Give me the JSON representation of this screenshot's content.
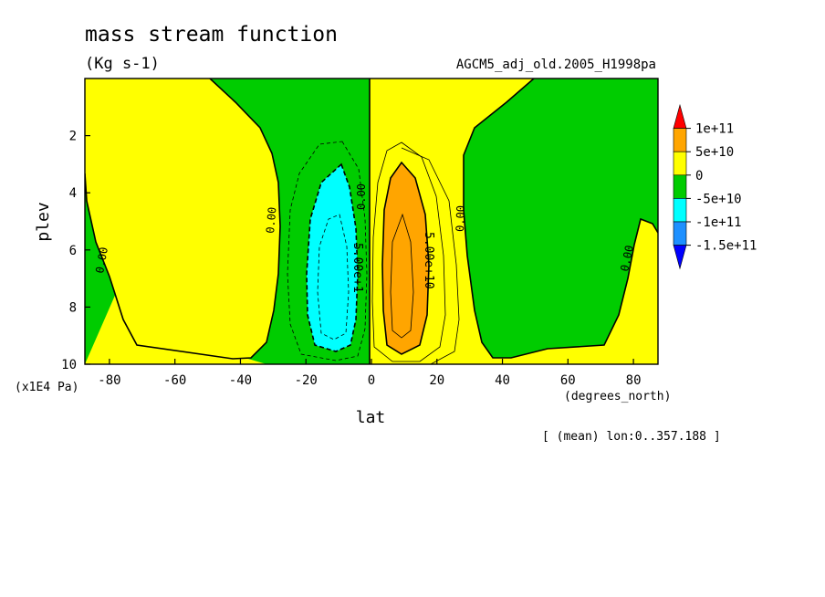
{
  "chart_data": {
    "type": "heatmap",
    "title": "mass stream function",
    "subtitle": "(Kg s-1)",
    "dataset_label": "AGCM5_adj_old.2005_H1998pa",
    "xlabel": "lat",
    "x_unit": "(degrees_north)",
    "ylabel": "plev",
    "y_unit": "(x1E4 Pa)",
    "footer": "[ (mean) lon:0..357.188 ]",
    "xlim": [
      -87.5,
      87.5
    ],
    "ylim": [
      0,
      10
    ],
    "y_reversed": true,
    "x_ticks": [
      -80,
      -60,
      -40,
      -20,
      0,
      20,
      40,
      60,
      80
    ],
    "y_ticks": [
      2,
      4,
      6,
      8,
      10
    ],
    "contour_labels": [
      "0.00",
      "5.00e+10",
      "5.00e+1"
    ],
    "colorbar": {
      "labels": [
        "1e+11",
        "5e+10",
        "0",
        "-5e+10",
        "-1e+11",
        "-1.5e+11"
      ],
      "colors": [
        "#ff0000",
        "#ffa500",
        "#ffff00",
        "#00cc00",
        "#00ffff",
        "#1e90ff",
        "#0000ff"
      ]
    },
    "fill_colors": {
      "orange": "#ffa500",
      "yellow": "#ffff00",
      "green": "#00cc00",
      "cyan": "#00ffff"
    },
    "regions": [
      {
        "name": "polar-south-positive",
        "level": "0 to 5e+10",
        "lat_range": [
          -87.5,
          -30
        ]
      },
      {
        "name": "southern-hadley-cell",
        "level": "-5e+10 to -1e+11",
        "min_lat_center": -10,
        "plev_center": 6
      },
      {
        "name": "northern-hadley-cell",
        "level": "5e+10 to 1e+11",
        "max_lat_center": 10,
        "plev_center": 6
      },
      {
        "name": "ferrel-cells",
        "level": "-5e+10 to 0",
        "lat_range": [
          30,
          75
        ]
      }
    ]
  }
}
